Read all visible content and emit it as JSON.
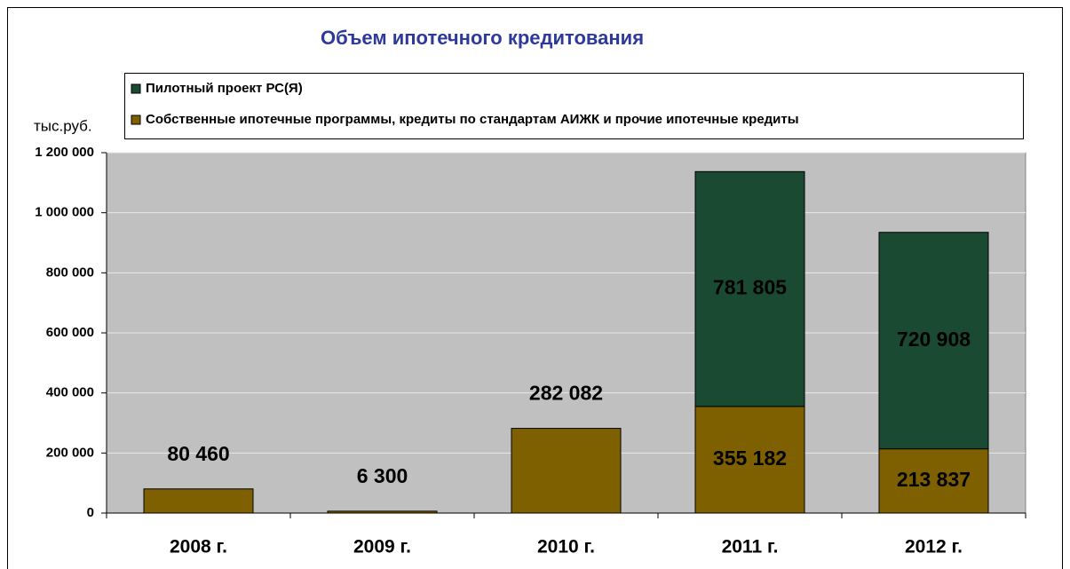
{
  "chart_data": {
    "type": "stacked_bar",
    "title": "Объем ипотечного кредитования",
    "y_label": "тыс.руб.",
    "categories": [
      "2008 г.",
      "2009 г.",
      "2010 г.",
      "2011 г.",
      "2012 г."
    ],
    "series": [
      {
        "name": "Собственные ипотечные программы, кредиты по стандартам АИЖК и прочие ипотечные кредиты",
        "color": "#7f6000",
        "values": [
          80460,
          6300,
          282082,
          355182,
          213837
        ],
        "value_labels": [
          "80 460",
          "6 300",
          "282 082",
          "355 182",
          "213 837"
        ]
      },
      {
        "name": "Пилотный проект РС(Я)",
        "color": "#1b4a33",
        "values": [
          null,
          null,
          null,
          781805,
          720908
        ],
        "value_labels": [
          null,
          null,
          null,
          "781 805",
          "720 908"
        ]
      }
    ],
    "ylim": [
      0,
      1200000
    ],
    "yticks": [
      0,
      {
        "value": 200000,
        "label": "200 000"
      },
      {
        "value": 400000,
        "label": "400 000"
      },
      {
        "value": 600000,
        "label": "600 000"
      },
      {
        "value": 800000,
        "label": "800 000"
      },
      {
        "value": 1000000,
        "label": "1 000 000"
      },
      {
        "value": 1200000,
        "label": "1 200 000"
      }
    ],
    "grid": true,
    "legend": "top"
  }
}
